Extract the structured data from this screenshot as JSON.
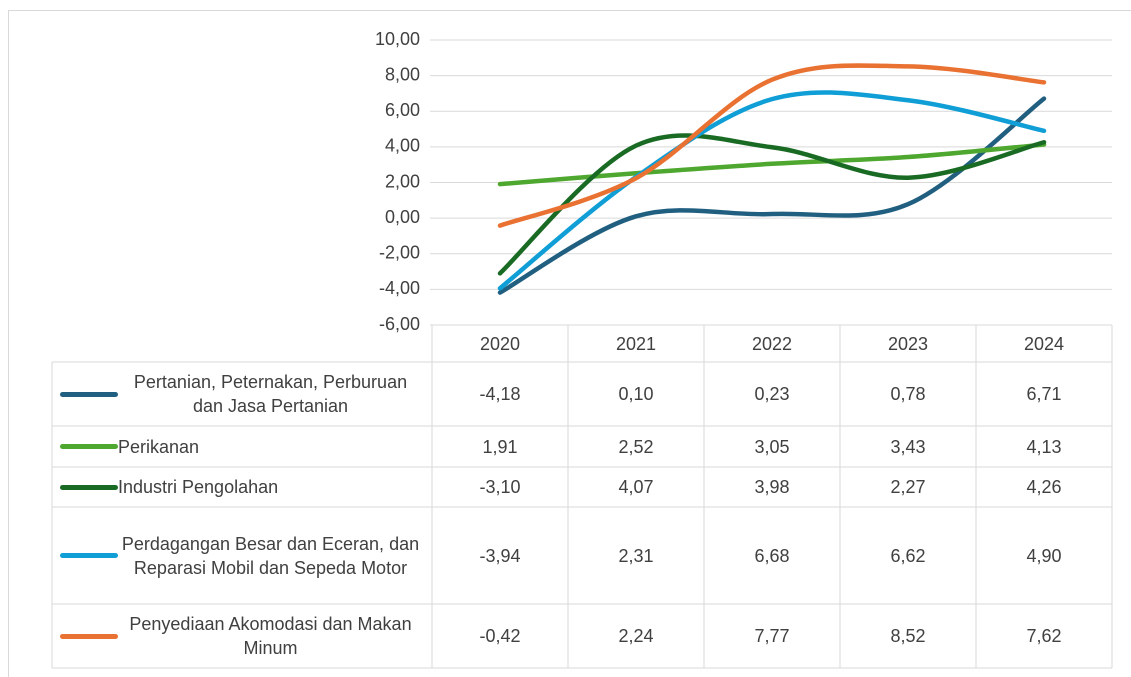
{
  "chart_data": {
    "type": "line",
    "categories": [
      "2020",
      "2021",
      "2022",
      "2023",
      "2024"
    ],
    "ylim": [
      -6,
      10
    ],
    "yticks": [
      {
        "value": -6,
        "label": "-6,00"
      },
      {
        "value": -4,
        "label": "-4,00"
      },
      {
        "value": -2,
        "label": "-2,00"
      },
      {
        "value": 0,
        "label": "0,00"
      },
      {
        "value": 2,
        "label": "2,00"
      },
      {
        "value": 4,
        "label": "4,00"
      },
      {
        "value": 6,
        "label": "6,00"
      },
      {
        "value": 8,
        "label": "8,00"
      },
      {
        "value": 10,
        "label": "10,00"
      }
    ],
    "grid": true,
    "smooth": true,
    "series": [
      {
        "name": "Pertanian, Peternakan, Perburuan dan Jasa Pertanian",
        "color": "#215f80",
        "values": [
          -4.18,
          0.1,
          0.23,
          0.78,
          6.71
        ],
        "value_labels": [
          "-4,18",
          "0,10",
          "0,23",
          "0,78",
          "6,71"
        ]
      },
      {
        "name": "Perikanan",
        "color": "#4ea72e",
        "values": [
          1.91,
          2.52,
          3.05,
          3.43,
          4.13
        ],
        "value_labels": [
          "1,91",
          "2,52",
          "3,05",
          "3,43",
          "4,13"
        ]
      },
      {
        "name": "Industri Pengolahan",
        "color": "#196b24",
        "values": [
          -3.1,
          4.07,
          3.98,
          2.27,
          4.26
        ],
        "value_labels": [
          "-3,10",
          "4,07",
          "3,98",
          "2,27",
          "4,26"
        ]
      },
      {
        "name": "Perdagangan Besar dan Eceran, dan Reparasi Mobil dan Sepeda Motor",
        "color": "#0f9ed5",
        "values": [
          -3.94,
          2.31,
          6.68,
          6.62,
          4.9
        ],
        "value_labels": [
          "-3,94",
          "2,31",
          "6,68",
          "6,62",
          "4,90"
        ]
      },
      {
        "name": "Penyediaan Akomodasi dan Makan Minum",
        "color": "#e97132",
        "values": [
          -0.42,
          2.24,
          7.77,
          8.52,
          7.62
        ],
        "value_labels": [
          "-0,42",
          "2,24",
          "7,77",
          "8,52",
          "7,62"
        ]
      }
    ]
  }
}
